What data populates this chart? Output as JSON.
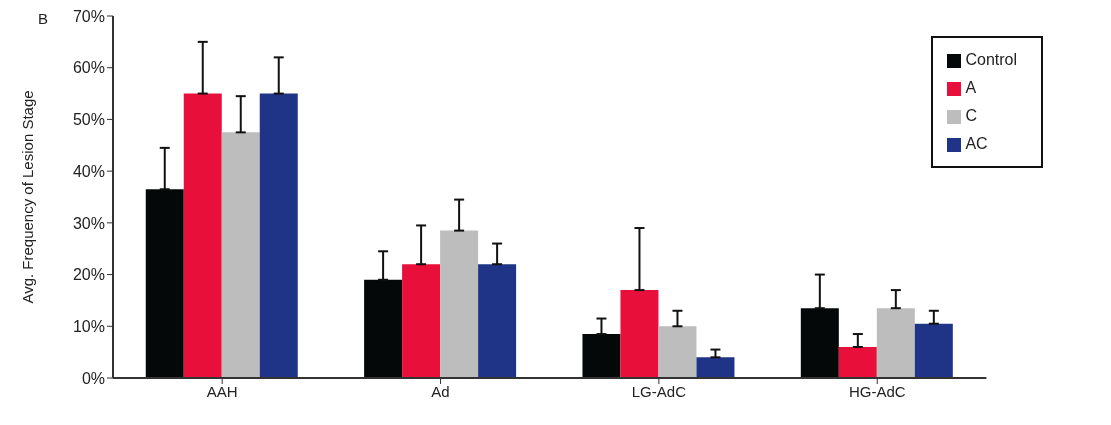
{
  "chart_data": {
    "type": "bar",
    "ylabel": "Avg. Frequency of Lesion Stage",
    "annotations": [
      "B"
    ],
    "categories": [
      "AAH",
      "Ad",
      "LG-AdC",
      "HG-AdC"
    ],
    "series": [
      {
        "name": "Control",
        "color": "#050808",
        "values": [
          36.5,
          19,
          8.5,
          13.5
        ],
        "errors": [
          [
            36.5,
            44.5
          ],
          [
            19,
            24.5
          ],
          [
            8.5,
            11.5
          ],
          [
            13.5,
            20
          ]
        ]
      },
      {
        "name": "A",
        "color": "#e8103a",
        "values": [
          55,
          22,
          17,
          6
        ],
        "errors": [
          [
            55,
            65
          ],
          [
            22,
            29.5
          ],
          [
            17,
            29
          ],
          [
            6,
            8.5
          ]
        ]
      },
      {
        "name": "C",
        "color": "#bdbdbd",
        "values": [
          47.5,
          28.5,
          10,
          13.5
        ],
        "errors": [
          [
            47.5,
            54.5
          ],
          [
            28.5,
            34.5
          ],
          [
            10,
            13
          ],
          [
            13.5,
            17
          ]
        ]
      },
      {
        "name": "AC",
        "color": "#1f3487",
        "values": [
          55,
          22,
          4,
          10.5
        ],
        "errors": [
          [
            55,
            62
          ],
          [
            22,
            26
          ],
          [
            4,
            5.5
          ],
          [
            10.5,
            13
          ]
        ]
      }
    ],
    "ylim": [
      0,
      70
    ],
    "yticks": [
      {
        "value": 0,
        "label": "0%"
      },
      {
        "value": 10,
        "label": "10%"
      },
      {
        "value": 20,
        "label": "20%"
      },
      {
        "value": 30,
        "label": "30%"
      },
      {
        "value": 40,
        "label": "40%"
      },
      {
        "value": 50,
        "label": "50%"
      },
      {
        "value": 60,
        "label": "60%"
      },
      {
        "value": 70,
        "label": "70%"
      }
    ],
    "legend": "top right"
  }
}
